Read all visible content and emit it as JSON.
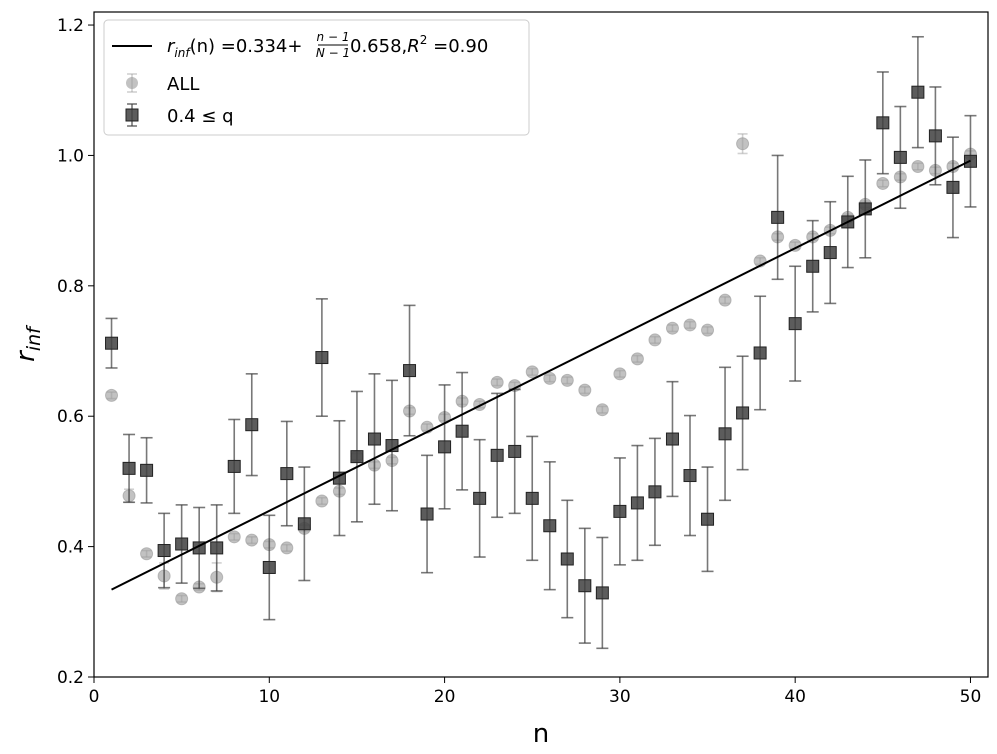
{
  "chart_data": {
    "type": "scatter",
    "title": "",
    "xlabel": "n",
    "ylabel": "r",
    "ylabel_sub": "inf",
    "xlim": [
      0,
      51
    ],
    "ylim": [
      0.2,
      1.22
    ],
    "xticks": [
      0,
      10,
      20,
      30,
      40,
      50
    ],
    "yticks": [
      0.2,
      0.4,
      0.6,
      0.8,
      1.0,
      1.2
    ],
    "xtick_labels": [
      "0",
      "10",
      "20",
      "30",
      "40",
      "50"
    ],
    "ytick_labels": [
      "0.2",
      "0.4",
      "0.6",
      "0.8",
      "1.0",
      "1.2"
    ],
    "grid": false,
    "legend_position": "top-left",
    "fit": {
      "label_prefix": "r",
      "label_sub": "inf",
      "label_main": "(n) =0.334+",
      "frac_num": "n − 1",
      "frac_den": "N − 1",
      "label_tail": "0.658,",
      "r2_base": "R",
      "r2_sup": "2",
      "r2_value": " =0.90",
      "intercept": 0.334,
      "slope_factor": 0.658,
      "N": 50,
      "color": "#000000"
    },
    "series": [
      {
        "name": "ALL",
        "marker": "circle",
        "color": "#9a9a9a",
        "x": [
          1,
          2,
          3,
          4,
          5,
          6,
          7,
          8,
          9,
          10,
          11,
          12,
          13,
          14,
          15,
          16,
          17,
          18,
          19,
          20,
          21,
          22,
          23,
          24,
          25,
          26,
          27,
          28,
          29,
          30,
          31,
          32,
          33,
          34,
          35,
          36,
          37,
          38,
          39,
          40,
          41,
          42,
          43,
          44,
          45,
          46,
          47,
          48,
          49,
          50
        ],
        "y": [
          0.632,
          0.478,
          0.389,
          0.355,
          0.32,
          0.338,
          0.353,
          0.415,
          0.41,
          0.403,
          0.398,
          0.428,
          0.47,
          0.485,
          0.538,
          0.525,
          0.532,
          0.608,
          0.583,
          0.598,
          0.623,
          0.618,
          0.652,
          0.647,
          0.668,
          0.658,
          0.655,
          0.64,
          0.61,
          0.665,
          0.688,
          0.717,
          0.735,
          0.74,
          0.732,
          0.778,
          1.018,
          0.838,
          0.875,
          0.862,
          0.875,
          0.885,
          0.905,
          0.925,
          0.957,
          0.967,
          0.983,
          0.977,
          0.983,
          1.002
        ],
        "yerr": [
          0.005,
          0.01,
          0.005,
          0.02,
          0.005,
          0.005,
          0.022,
          0.005,
          0.005,
          0.005,
          0.005,
          0.005,
          0.005,
          0.005,
          0.005,
          0.005,
          0.005,
          0.005,
          0.005,
          0.005,
          0.005,
          0.005,
          0.005,
          0.005,
          0.005,
          0.005,
          0.005,
          0.005,
          0.005,
          0.005,
          0.005,
          0.005,
          0.005,
          0.005,
          0.005,
          0.005,
          0.015,
          0.005,
          0.005,
          0.005,
          0.005,
          0.005,
          0.005,
          0.005,
          0.005,
          0.005,
          0.005,
          0.005,
          0.005,
          0.005
        ]
      },
      {
        "name": "0.4 ≤ q",
        "marker": "square",
        "color": "#3f3f3f",
        "x": [
          1,
          2,
          3,
          4,
          5,
          6,
          7,
          8,
          9,
          10,
          11,
          12,
          13,
          14,
          15,
          16,
          17,
          18,
          19,
          20,
          21,
          22,
          23,
          24,
          25,
          26,
          27,
          28,
          29,
          30,
          31,
          32,
          33,
          34,
          35,
          36,
          37,
          38,
          39,
          40,
          41,
          42,
          43,
          44,
          45,
          46,
          47,
          48,
          49,
          50
        ],
        "y": [
          0.712,
          0.52,
          0.517,
          0.394,
          0.404,
          0.398,
          0.398,
          0.523,
          0.587,
          0.368,
          0.512,
          0.435,
          0.69,
          0.505,
          0.538,
          0.565,
          0.555,
          0.67,
          0.45,
          0.553,
          0.577,
          0.474,
          0.54,
          0.546,
          0.474,
          0.432,
          0.381,
          0.34,
          0.329,
          0.454,
          0.467,
          0.484,
          0.565,
          0.509,
          0.442,
          0.573,
          0.605,
          0.697,
          0.905,
          0.742,
          0.83,
          0.851,
          0.898,
          0.918,
          1.05,
          0.997,
          1.097,
          1.03,
          0.951,
          0.991
        ],
        "yerr": [
          0.038,
          0.052,
          0.05,
          0.057,
          0.06,
          0.062,
          0.066,
          0.072,
          0.078,
          0.08,
          0.08,
          0.087,
          0.09,
          0.088,
          0.1,
          0.1,
          0.1,
          0.1,
          0.09,
          0.095,
          0.09,
          0.09,
          0.095,
          0.095,
          0.095,
          0.098,
          0.09,
          0.088,
          0.085,
          0.082,
          0.088,
          0.082,
          0.088,
          0.092,
          0.08,
          0.102,
          0.087,
          0.087,
          0.095,
          0.088,
          0.07,
          0.078,
          0.07,
          0.075,
          0.078,
          0.078,
          0.085,
          0.075,
          0.077,
          0.07
        ]
      }
    ]
  }
}
